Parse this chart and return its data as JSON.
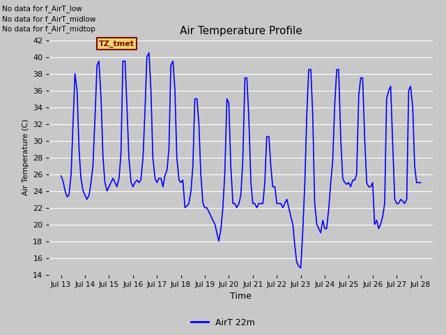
{
  "title": "Air Temperature Profile",
  "xlabel": "Time",
  "ylabel": "Air Temperature (C)",
  "ylim": [
    14,
    42
  ],
  "yticks": [
    14,
    16,
    18,
    20,
    22,
    24,
    26,
    28,
    30,
    32,
    34,
    36,
    38,
    40,
    42
  ],
  "line_color": "blue",
  "line_width": 1.2,
  "background_color": "#c8c8c8",
  "plot_bg_color": "#c8c8c8",
  "legend_label": "AirT 22m",
  "text_annotations": [
    "No data for f_AirT_low",
    "No data for f_AirT_midlow",
    "No data for f_AirT_midtop"
  ],
  "tz_label": "TZ_tmet",
  "x_tick_labels": [
    "Jul 13",
    "Jul 14",
    "Jul 15",
    "Jul 16",
    "Jul 17",
    "Jul 18",
    "Jul 19",
    "Jul 20",
    "Jul 21",
    "Jul 22",
    "Jul 23",
    "Jul 24",
    "Jul 25",
    "Jul 26",
    "Jul 27",
    "Jul 28"
  ],
  "x_tick_positions": [
    0,
    1,
    2,
    3,
    4,
    5,
    6,
    7,
    8,
    9,
    10,
    11,
    12,
    13,
    14,
    15
  ],
  "time_values": [
    0.0,
    0.08,
    0.17,
    0.25,
    0.33,
    0.42,
    0.5,
    0.58,
    0.67,
    0.75,
    0.83,
    0.92,
    1.0,
    1.08,
    1.17,
    1.25,
    1.33,
    1.42,
    1.5,
    1.58,
    1.67,
    1.75,
    1.83,
    1.92,
    2.0,
    2.08,
    2.17,
    2.25,
    2.33,
    2.42,
    2.5,
    2.58,
    2.67,
    2.75,
    2.83,
    2.92,
    3.0,
    3.08,
    3.17,
    3.25,
    3.33,
    3.42,
    3.5,
    3.58,
    3.67,
    3.75,
    3.83,
    3.92,
    4.0,
    4.08,
    4.17,
    4.25,
    4.33,
    4.42,
    4.5,
    4.58,
    4.67,
    4.75,
    4.83,
    4.92,
    5.0,
    5.08,
    5.17,
    5.25,
    5.33,
    5.42,
    5.5,
    5.58,
    5.67,
    5.75,
    5.83,
    5.92,
    6.0,
    6.08,
    6.17,
    6.25,
    6.33,
    6.42,
    6.5,
    6.58,
    6.67,
    6.75,
    6.83,
    6.92,
    7.0,
    7.08,
    7.17,
    7.25,
    7.33,
    7.42,
    7.5,
    7.58,
    7.67,
    7.75,
    7.83,
    7.92,
    8.0,
    8.08,
    8.17,
    8.25,
    8.33,
    8.42,
    8.5,
    8.58,
    8.67,
    8.75,
    8.83,
    8.92,
    9.0,
    9.08,
    9.17,
    9.25,
    9.33,
    9.42,
    9.5,
    9.58,
    9.67,
    9.75,
    9.83,
    9.92,
    10.0,
    10.08,
    10.17,
    10.25,
    10.33,
    10.42,
    10.5,
    10.58,
    10.67,
    10.75,
    10.83,
    10.92,
    11.0,
    11.08,
    11.17,
    11.25,
    11.33,
    11.42,
    11.5,
    11.58,
    11.67,
    11.75,
    11.83,
    11.92,
    12.0,
    12.08,
    12.17,
    12.25,
    12.33,
    12.42,
    12.5,
    12.58,
    12.67,
    12.75,
    12.83,
    12.92,
    13.0,
    13.08,
    13.17,
    13.25,
    13.33,
    13.42,
    13.5,
    13.58,
    13.67,
    13.75,
    13.83,
    13.92,
    14.0,
    14.08,
    14.17,
    14.25,
    14.33,
    14.42,
    14.5,
    14.58,
    14.67,
    14.75,
    14.83,
    14.92,
    15.0
  ],
  "temp_values": [
    25.8,
    25.2,
    24.0,
    23.3,
    23.5,
    26.0,
    32.0,
    38.0,
    36.0,
    29.0,
    25.5,
    24.0,
    23.5,
    23.0,
    23.5,
    25.0,
    27.0,
    33.0,
    39.0,
    39.5,
    35.0,
    28.0,
    25.0,
    24.0,
    24.5,
    25.0,
    25.5,
    25.0,
    24.5,
    25.5,
    28.5,
    39.5,
    39.5,
    34.0,
    28.0,
    25.0,
    24.5,
    25.0,
    25.3,
    25.0,
    25.3,
    28.0,
    33.5,
    40.0,
    40.5,
    36.0,
    28.0,
    25.5,
    25.0,
    25.5,
    25.5,
    24.5,
    25.8,
    26.5,
    29.0,
    39.0,
    39.5,
    36.0,
    28.0,
    25.3,
    25.0,
    25.3,
    22.0,
    22.2,
    22.5,
    24.0,
    27.0,
    35.0,
    35.0,
    32.0,
    26.0,
    22.5,
    22.0,
    22.0,
    21.5,
    21.0,
    20.5,
    20.0,
    19.0,
    18.0,
    19.5,
    22.0,
    26.0,
    35.0,
    34.5,
    27.0,
    22.5,
    22.5,
    22.0,
    22.5,
    23.5,
    27.5,
    37.5,
    37.5,
    33.0,
    25.0,
    22.5,
    22.5,
    22.0,
    22.5,
    22.5,
    22.5,
    25.0,
    30.5,
    30.5,
    27.0,
    24.5,
    24.5,
    22.5,
    22.5,
    22.5,
    22.0,
    22.5,
    23.0,
    22.0,
    21.0,
    20.0,
    17.5,
    15.5,
    15.0,
    14.8,
    19.0,
    25.0,
    33.0,
    38.5,
    38.5,
    33.0,
    22.5,
    20.0,
    19.5,
    19.0,
    20.5,
    19.5,
    19.5,
    22.0,
    25.0,
    27.5,
    34.5,
    38.5,
    38.5,
    30.0,
    25.5,
    25.0,
    24.8,
    25.0,
    24.5,
    25.3,
    25.3,
    26.0,
    35.5,
    37.5,
    37.5,
    30.0,
    25.0,
    24.5,
    24.5,
    25.0,
    20.0,
    20.5,
    19.5,
    20.0,
    21.0,
    22.5,
    35.0,
    36.0,
    36.5,
    30.0,
    23.0,
    22.5,
    22.5,
    23.0,
    22.8,
    22.5,
    23.0,
    36.0,
    36.5,
    34.0,
    27.0,
    25.0,
    25.0,
    25.0
  ]
}
